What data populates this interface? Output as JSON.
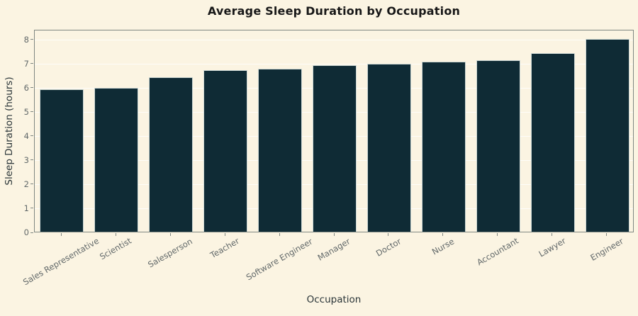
{
  "chart_data": {
    "type": "bar",
    "title": "Average Sleep Duration by Occupation",
    "xlabel": "Occupation",
    "ylabel": "Sleep Duration (hours)",
    "categories": [
      "Sales Representative",
      "Scientist",
      "Salesperson",
      "Teacher",
      "Software Engineer",
      "Manager",
      "Doctor",
      "Nurse",
      "Accountant",
      "Lawyer",
      "Engineer"
    ],
    "values": [
      5.9,
      5.97,
      6.4,
      6.69,
      6.75,
      6.9,
      6.97,
      7.06,
      7.11,
      7.41,
      7.99
    ],
    "yticks": [
      0,
      1,
      2,
      3,
      4,
      5,
      6,
      7,
      8
    ],
    "ylim": [
      0,
      8.4
    ],
    "grid": true,
    "legend": false,
    "bar_width_ratio": 0.8,
    "x_label_rotation_deg": 30,
    "colors": {
      "background": "#fbf4e2",
      "bar": "#0f2b35",
      "bar_edge": "#cdd8d5",
      "spine": "#7f8782",
      "grid": "rgba(255,255,255,0.8)",
      "title_text": "#181818",
      "axis_label_text": "#2a3538",
      "tick_text": "#62696a"
    }
  }
}
